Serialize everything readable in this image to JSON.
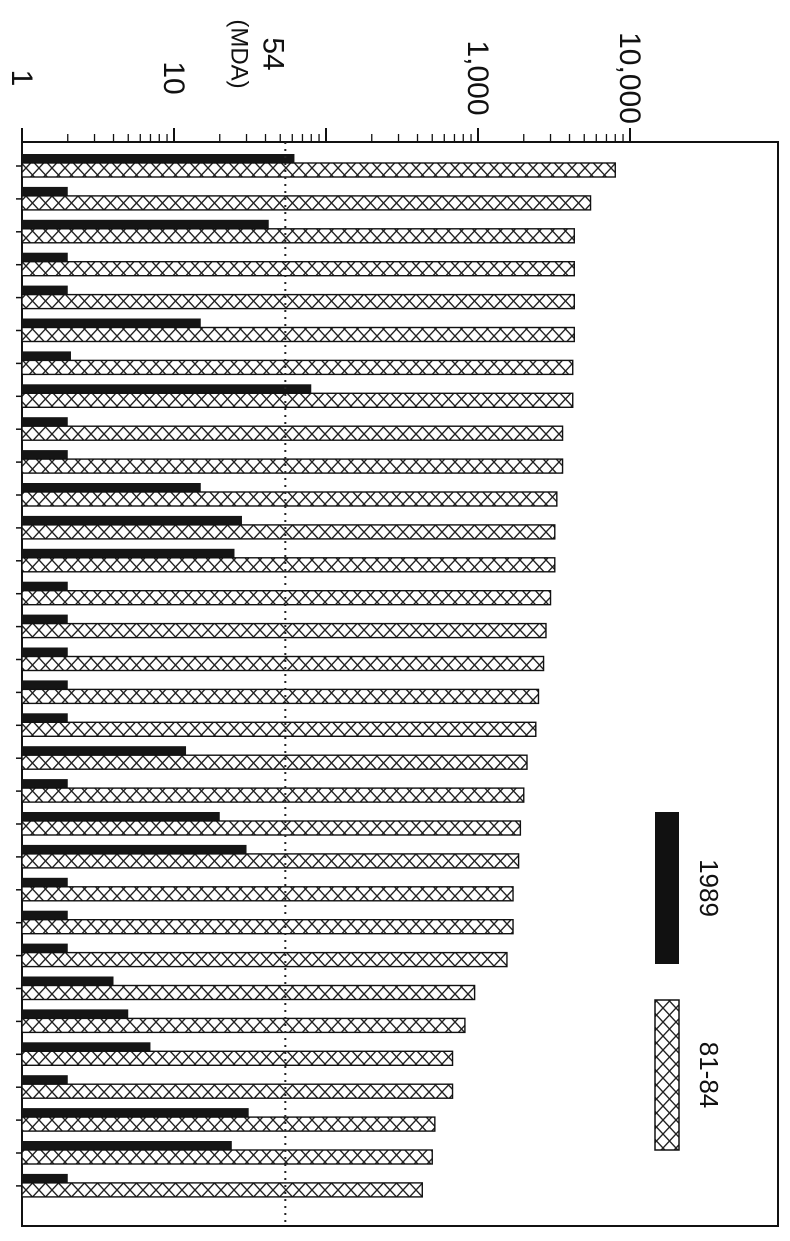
{
  "chart_data": {
    "type": "bar",
    "orientation": "horizontal",
    "value_axis": {
      "scale": "log",
      "range": [
        1,
        10000
      ],
      "tick_values": [
        1,
        10,
        1000,
        10000
      ],
      "tick_labels": [
        "1",
        "10",
        "1,000",
        "10,000"
      ],
      "position": "top"
    },
    "reference_line": {
      "value": 54,
      "label": "54",
      "sublabel": "(MDA)",
      "style": "dotted"
    },
    "legend": {
      "placement": "bottom-right",
      "entries": [
        {
          "label": "1989",
          "style": "solid",
          "color": "#111111"
        },
        {
          "label": "81-84",
          "style": "crosshatch",
          "color": "#ffffff"
        }
      ]
    },
    "series": [
      {
        "name": "1989",
        "values": [
          62,
          2,
          42,
          2,
          2,
          15,
          2.1,
          80,
          2,
          2,
          15,
          28,
          25,
          2,
          2,
          2,
          2,
          2,
          12,
          2,
          20,
          30,
          2,
          2,
          2,
          4,
          5,
          7,
          2,
          31,
          24,
          2
        ]
      },
      {
        "name": "81-84",
        "values": [
          8000,
          5500,
          4300,
          4300,
          4300,
          4300,
          4200,
          4200,
          3600,
          3600,
          3300,
          3200,
          3200,
          3000,
          2800,
          2700,
          2500,
          2400,
          2100,
          2000,
          1900,
          1850,
          1700,
          1700,
          1550,
          950,
          820,
          680,
          680,
          520,
          500,
          430
        ]
      }
    ]
  }
}
